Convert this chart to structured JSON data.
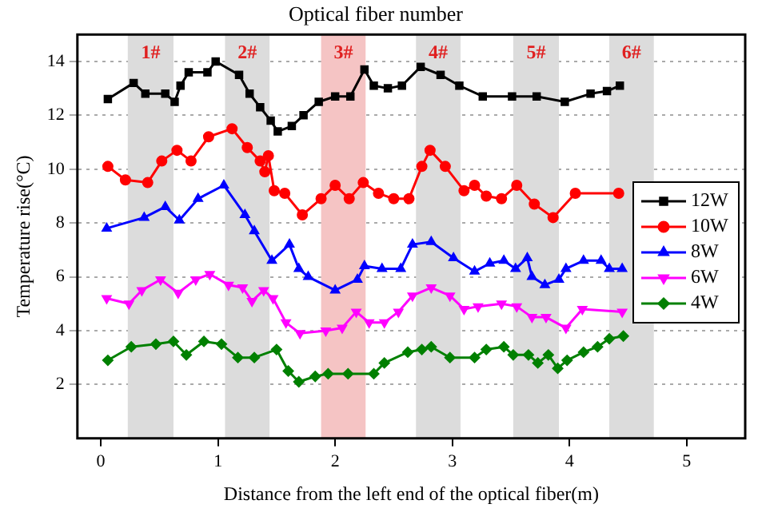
{
  "chart_data": {
    "type": "line",
    "title": "Optical fiber number",
    "xlabel": "Distance from the left end of the optical fiber(m)",
    "ylabel": "Temperature rise(°C)",
    "xlim": [
      -0.2,
      5.5
    ],
    "xticks": [
      0,
      1,
      2,
      3,
      4,
      5
    ],
    "ylim": [
      0,
      15
    ],
    "yticks": [
      2,
      4,
      6,
      8,
      10,
      12,
      14
    ],
    "grid": "y",
    "legend": "right",
    "line_style": "solid",
    "bands": [
      {
        "axis": "x",
        "from": 0.23,
        "to": 0.62,
        "label": "1#",
        "color": "#dcdcdc"
      },
      {
        "axis": "x",
        "from": 1.06,
        "to": 1.44,
        "label": "2#",
        "color": "#dcdcdc"
      },
      {
        "axis": "x",
        "from": 1.88,
        "to": 2.26,
        "label": "3#",
        "color": "#f5c4c4"
      },
      {
        "axis": "x",
        "from": 2.69,
        "to": 3.07,
        "label": "4#",
        "color": "#dcdcdc"
      },
      {
        "axis": "x",
        "from": 3.52,
        "to": 3.91,
        "label": "5#",
        "color": "#dcdcdc"
      },
      {
        "axis": "x",
        "from": 4.34,
        "to": 4.72,
        "label": "6#",
        "color": "#dcdcdc"
      }
    ],
    "series": [
      {
        "name": "12W",
        "color": "#000000",
        "marker": "square",
        "x": [
          0.06,
          0.28,
          0.38,
          0.55,
          0.63,
          0.68,
          0.75,
          0.91,
          0.98,
          1.18,
          1.27,
          1.36,
          1.45,
          1.51,
          1.63,
          1.73,
          1.86,
          2.0,
          2.13,
          2.25,
          2.33,
          2.45,
          2.57,
          2.73,
          2.9,
          3.06,
          3.26,
          3.51,
          3.72,
          3.96,
          4.18,
          4.32,
          4.43
        ],
        "values": [
          12.6,
          13.2,
          12.8,
          12.8,
          12.5,
          13.1,
          13.6,
          13.6,
          14.0,
          13.5,
          12.8,
          12.3,
          11.8,
          11.4,
          11.6,
          12.0,
          12.5,
          12.7,
          12.7,
          13.7,
          13.1,
          13.0,
          13.1,
          13.8,
          13.5,
          13.1,
          12.7,
          12.7,
          12.7,
          12.5,
          12.8,
          12.9,
          13.1
        ]
      },
      {
        "name": "10W",
        "color": "#ff0000",
        "marker": "circle",
        "x": [
          0.06,
          0.21,
          0.4,
          0.52,
          0.65,
          0.77,
          0.92,
          1.12,
          1.25,
          1.36,
          1.4,
          1.43,
          1.48,
          1.57,
          1.72,
          1.88,
          2.0,
          2.12,
          2.24,
          2.37,
          2.5,
          2.63,
          2.74,
          2.81,
          2.94,
          3.1,
          3.19,
          3.29,
          3.42,
          3.55,
          3.7,
          3.86,
          4.05,
          4.42
        ],
        "values": [
          10.1,
          9.6,
          9.5,
          10.3,
          10.7,
          10.3,
          11.2,
          11.5,
          10.8,
          10.3,
          9.9,
          10.5,
          9.2,
          9.1,
          8.3,
          8.9,
          9.4,
          8.9,
          9.5,
          9.1,
          8.9,
          8.9,
          10.1,
          10.7,
          10.1,
          9.2,
          9.4,
          9.0,
          8.9,
          9.4,
          8.7,
          8.2,
          9.1,
          9.1
        ]
      },
      {
        "name": "8W",
        "color": "#0000ff",
        "marker": "triangle",
        "x": [
          0.05,
          0.37,
          0.55,
          0.67,
          0.83,
          1.05,
          1.23,
          1.31,
          1.46,
          1.61,
          1.69,
          1.77,
          2.0,
          2.19,
          2.25,
          2.4,
          2.56,
          2.66,
          2.82,
          3.01,
          3.19,
          3.32,
          3.44,
          3.54,
          3.64,
          3.68,
          3.79,
          3.91,
          3.97,
          4.12,
          4.27,
          4.34,
          4.45
        ],
        "values": [
          7.8,
          8.2,
          8.6,
          8.1,
          8.9,
          9.4,
          8.3,
          7.7,
          6.6,
          7.2,
          6.3,
          6.0,
          5.5,
          5.9,
          6.4,
          6.3,
          6.3,
          7.2,
          7.3,
          6.7,
          6.2,
          6.5,
          6.6,
          6.3,
          6.7,
          6.0,
          5.7,
          5.9,
          6.3,
          6.6,
          6.6,
          6.3,
          6.3
        ]
      },
      {
        "name": "6W",
        "color": "#ff00ff",
        "marker": "triangle_down",
        "x": [
          0.05,
          0.24,
          0.35,
          0.51,
          0.66,
          0.81,
          0.93,
          1.09,
          1.21,
          1.29,
          1.39,
          1.47,
          1.58,
          1.7,
          1.92,
          2.06,
          2.18,
          2.29,
          2.42,
          2.54,
          2.66,
          2.82,
          2.98,
          3.1,
          3.22,
          3.42,
          3.55,
          3.68,
          3.8,
          3.97,
          4.11,
          4.45
        ],
        "values": [
          5.2,
          5.0,
          5.5,
          5.9,
          5.4,
          5.9,
          6.1,
          5.7,
          5.6,
          5.1,
          5.5,
          5.2,
          4.3,
          3.9,
          4.0,
          4.1,
          4.7,
          4.3,
          4.3,
          4.7,
          5.3,
          5.6,
          5.3,
          4.8,
          4.9,
          5.0,
          4.9,
          4.5,
          4.5,
          4.1,
          4.8,
          4.7
        ]
      },
      {
        "name": "4W",
        "color": "#008000",
        "marker": "diamond",
        "x": [
          0.06,
          0.26,
          0.47,
          0.62,
          0.73,
          0.88,
          1.03,
          1.17,
          1.31,
          1.5,
          1.6,
          1.69,
          1.83,
          1.94,
          2.11,
          2.33,
          2.42,
          2.62,
          2.74,
          2.82,
          2.98,
          3.19,
          3.29,
          3.44,
          3.52,
          3.65,
          3.73,
          3.82,
          3.9,
          3.98,
          4.12,
          4.24,
          4.34,
          4.46
        ],
        "values": [
          2.9,
          3.4,
          3.5,
          3.6,
          3.1,
          3.6,
          3.5,
          3.0,
          3.0,
          3.3,
          2.5,
          2.1,
          2.3,
          2.4,
          2.4,
          2.4,
          2.8,
          3.2,
          3.3,
          3.4,
          3.0,
          3.0,
          3.3,
          3.4,
          3.1,
          3.1,
          2.8,
          3.1,
          2.6,
          2.9,
          3.2,
          3.4,
          3.7,
          3.8
        ]
      }
    ]
  }
}
